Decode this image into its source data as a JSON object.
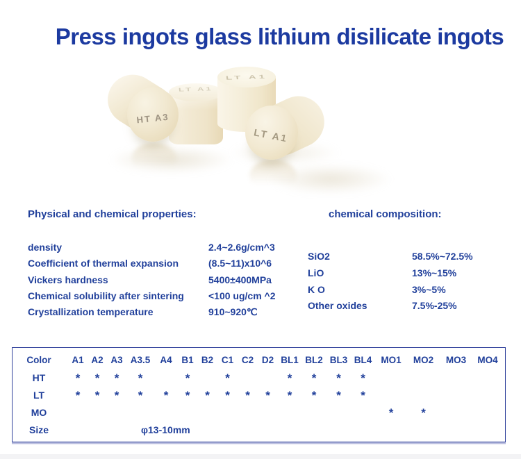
{
  "page": {
    "title": "Press ingots glass lithium disilicate ingots"
  },
  "scene": {
    "labels": {
      "front_left": "HT A3",
      "mid_top": "LT A1",
      "tall_top": "LT A1",
      "front_right": "LT A1"
    }
  },
  "physical": {
    "heading": "Physical and chemical properties:",
    "rows": [
      {
        "label": "density",
        "value": "2.4~2.6g/cm^3"
      },
      {
        "label": "Coefficient of thermal expansion",
        "value": "(8.5~11)x10^6"
      },
      {
        "label": "Vickers hardness",
        "value": "5400±400MPa"
      },
      {
        "label": "Chemical solubility after sintering",
        "value": "<100 ug/cm ^2"
      },
      {
        "label": "Crystallization temperature",
        "value": "910~920℃"
      }
    ]
  },
  "composition": {
    "heading": "chemical composition:",
    "rows": [
      {
        "label": "SiO2",
        "value": "58.5%~72.5%"
      },
      {
        "label": "LiO",
        "value": "13%~15%"
      },
      {
        "label": "K O",
        "value": "3%~5%"
      },
      {
        "label": "Other oxides",
        "value": "7.5%-25%"
      }
    ]
  },
  "availability_table": {
    "columns": [
      "Color",
      "A1",
      "A2",
      "A3",
      "A3.5",
      "A4",
      "B1",
      "B2",
      "C1",
      "C2",
      "D2",
      "BL1",
      "BL2",
      "BL3",
      "BL4",
      "MO1",
      "MO2",
      "MO3",
      "MO4"
    ],
    "rows": [
      {
        "name": "HT",
        "marks": [
          "*",
          "*",
          "*",
          "*",
          "",
          "*",
          "",
          "*",
          "",
          "",
          "*",
          "*",
          "*",
          "*",
          "",
          "",
          "",
          ""
        ]
      },
      {
        "name": "LT",
        "marks": [
          "*",
          "*",
          "*",
          "*",
          "*",
          "*",
          "*",
          "*",
          "*",
          "*",
          "*",
          "*",
          "*",
          "*",
          "",
          "",
          "",
          ""
        ]
      },
      {
        "name": "MO",
        "marks": [
          "",
          "",
          "",
          "",
          "",
          "",
          "",
          "",
          "",
          "",
          "",
          "",
          "",
          "",
          "*",
          "*",
          "",
          ""
        ]
      }
    ],
    "size_row": {
      "name": "Size",
      "value": "φ13-10mm"
    }
  },
  "colors": {
    "accent_text": "#21409b",
    "title_text": "#1c3aa0",
    "table_border": "#2e3f9a",
    "ingot_cream": "#efe5ca"
  }
}
